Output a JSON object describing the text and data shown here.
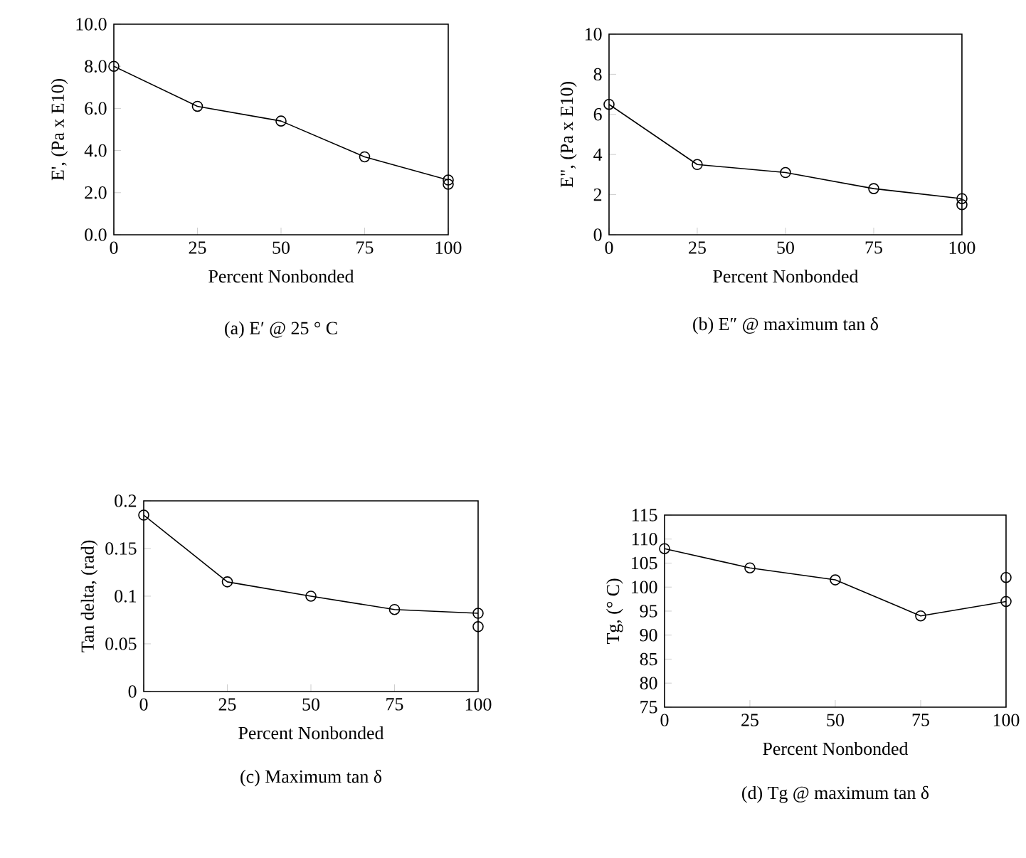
{
  "chart_data": [
    {
      "type": "line",
      "title": "(a)  E′ @ 25 ° C",
      "xlabel": "Percent Nonbonded",
      "ylabel": "E', (Pa x E10)",
      "xlim": [
        0,
        100
      ],
      "ylim": [
        0,
        10
      ],
      "xticks": [
        0,
        25,
        50,
        75,
        100
      ],
      "yticks": [
        {
          "value": 0,
          "label": "0.0"
        },
        {
          "value": 2,
          "label": "2.0"
        },
        {
          "value": 4,
          "label": "4.0"
        },
        {
          "value": 6,
          "label": "6.0"
        },
        {
          "value": 8,
          "label": "8.0"
        },
        {
          "value": 10,
          "label": "10.0"
        }
      ],
      "grid": false,
      "marker": "circle",
      "line_style": "solid",
      "series": [
        {
          "color": "#000000",
          "x": [
            0,
            25,
            50,
            75,
            100
          ],
          "values": [
            8.0,
            6.1,
            5.4,
            3.7,
            2.6
          ]
        },
        {
          "type": "scatter",
          "color": "#000000",
          "x": [
            100
          ],
          "values": [
            2.4
          ]
        }
      ]
    },
    {
      "type": "line",
      "title": "(b)  E″ @ maximum tan δ",
      "xlabel": "Percent Nonbonded",
      "ylabel": "E\", (Pa x E10)",
      "xlim": [
        0,
        100
      ],
      "ylim": [
        0,
        10
      ],
      "xticks": [
        0,
        25,
        50,
        75,
        100
      ],
      "yticks": [
        0,
        2,
        4,
        6,
        8,
        10
      ],
      "grid": false,
      "marker": "circle",
      "line_style": "solid",
      "series": [
        {
          "color": "#000000",
          "x": [
            0,
            25,
            50,
            75,
            100
          ],
          "values": [
            6.5,
            3.5,
            3.1,
            2.3,
            1.8
          ]
        },
        {
          "type": "scatter",
          "color": "#000000",
          "x": [
            100
          ],
          "values": [
            1.5
          ]
        }
      ]
    },
    {
      "type": "line",
      "title": "(c)  Maximum tan δ",
      "xlabel": "Percent Nonbonded",
      "ylabel": "Tan delta, (rad)",
      "xlim": [
        0,
        100
      ],
      "ylim": [
        0,
        0.2
      ],
      "xticks": [
        0,
        25,
        50,
        75,
        100
      ],
      "yticks": [
        0,
        0.05,
        0.1,
        0.15,
        0.2
      ],
      "grid": false,
      "marker": "circle",
      "line_style": "solid",
      "series": [
        {
          "color": "#000000",
          "x": [
            0,
            25,
            50,
            75,
            100
          ],
          "values": [
            0.185,
            0.115,
            0.1,
            0.086,
            0.082
          ]
        },
        {
          "type": "scatter",
          "color": "#000000",
          "x": [
            100
          ],
          "values": [
            0.068
          ]
        }
      ]
    },
    {
      "type": "line",
      "title": "(d)  Tg @ maximum tan δ",
      "xlabel": "Percent Nonbonded",
      "ylabel": "Tg, (° C)",
      "xlim": [
        0,
        100
      ],
      "ylim": [
        75,
        115
      ],
      "xticks": [
        0,
        25,
        50,
        75,
        100
      ],
      "yticks": [
        75,
        80,
        85,
        90,
        95,
        100,
        105,
        110,
        115
      ],
      "grid": false,
      "marker": "circle",
      "line_style": "solid",
      "series": [
        {
          "color": "#000000",
          "x": [
            0,
            25,
            50,
            75,
            100
          ],
          "values": [
            108,
            104,
            101.5,
            94,
            97
          ]
        },
        {
          "type": "scatter",
          "color": "#000000",
          "x": [
            100
          ],
          "values": [
            102
          ]
        }
      ]
    }
  ]
}
